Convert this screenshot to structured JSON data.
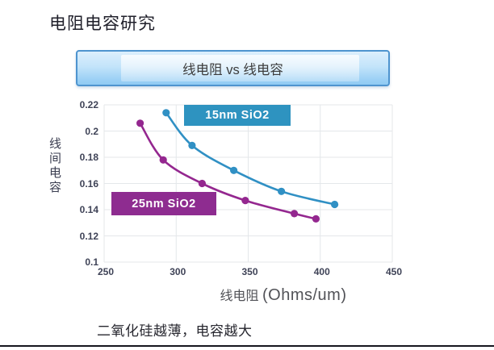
{
  "slide": {
    "title": "电阻电容研究",
    "banner_label": "线电阻 vs 线电容",
    "caption": "二氧化硅越薄，电容越大"
  },
  "chart_data": {
    "type": "scatter",
    "subtype": "scatter points with smooth trend curves",
    "title": "线电阻 vs 线电容",
    "xlabel": "线电阻",
    "xlabel_unit": "(Ohms/um)",
    "ylabel": "线间电容",
    "xlim": [
      250,
      450
    ],
    "ylim": [
      0.1,
      0.22
    ],
    "xticks": [
      "250",
      "300",
      "350",
      "400",
      "450"
    ],
    "yticks": [
      "0.22",
      "0.2",
      "0.18",
      "0.16",
      "0.14",
      "0.12",
      "0.1"
    ],
    "grid": true,
    "legend_position": "labels on chart",
    "series": [
      {
        "name": "15nm SiO2",
        "color": "#3090c4",
        "label_box_color": "#2e93c0",
        "x": [
          293,
          311,
          340,
          373,
          410
        ],
        "y": [
          0.214,
          0.189,
          0.17,
          0.154,
          0.144
        ]
      },
      {
        "name": "25nm SiO2",
        "color": "#94278f",
        "label_box_color": "#8e2c90",
        "x": [
          275,
          291,
          318,
          348,
          382,
          397
        ],
        "y": [
          0.206,
          0.178,
          0.16,
          0.147,
          0.137,
          0.133
        ]
      }
    ]
  },
  "colors": {
    "grid": "#e4e7ea",
    "tick_label": "#3f4357",
    "bottom_rule": "#16161e"
  }
}
